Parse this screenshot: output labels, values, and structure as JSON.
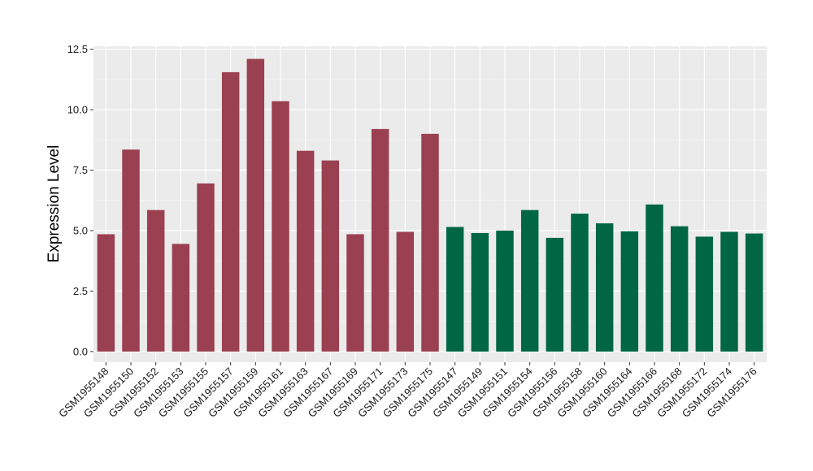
{
  "chart_data": {
    "type": "bar",
    "title": "",
    "xlabel": "",
    "ylabel": "Expression Level",
    "ylim": [
      -0.3,
      12.5
    ],
    "yticks": [
      0.0,
      2.5,
      5.0,
      7.5,
      10.0,
      12.5
    ],
    "ytick_labels": [
      "0.0",
      "2.5",
      "5.0",
      "7.5",
      "10.0",
      "12.5"
    ],
    "grid": true,
    "background": "#ebebeb",
    "categories": [
      "GSM1955148",
      "GSM1955150",
      "GSM1955152",
      "GSM1955153",
      "GSM1955155",
      "GSM1955157",
      "GSM1955159",
      "GSM1955161",
      "GSM1955163",
      "GSM1955167",
      "GSM1955169",
      "GSM1955171",
      "GSM1955173",
      "GSM1955175",
      "GSM1955147",
      "GSM1955149",
      "GSM1955151",
      "GSM1955154",
      "GSM1955156",
      "GSM1955158",
      "GSM1955160",
      "GSM1955164",
      "GSM1955166",
      "GSM1955168",
      "GSM1955172",
      "GSM1955174",
      "GSM1955176"
    ],
    "values": [
      4.85,
      8.35,
      5.85,
      4.45,
      6.95,
      11.55,
      12.1,
      10.35,
      8.3,
      7.9,
      4.85,
      9.2,
      4.95,
      9.0,
      5.15,
      4.9,
      5.0,
      5.85,
      4.7,
      5.7,
      5.3,
      4.97,
      6.08,
      5.18,
      4.75,
      4.95,
      4.88
    ],
    "bar_colors": [
      "#9a4050",
      "#9a4050",
      "#9a4050",
      "#9a4050",
      "#9a4050",
      "#9a4050",
      "#9a4050",
      "#9a4050",
      "#9a4050",
      "#9a4050",
      "#9a4050",
      "#9a4050",
      "#9a4050",
      "#9a4050",
      "#006644",
      "#006644",
      "#006644",
      "#006644",
      "#006644",
      "#006644",
      "#006644",
      "#006644",
      "#006644",
      "#006644",
      "#006644",
      "#006644",
      "#006644"
    ]
  }
}
